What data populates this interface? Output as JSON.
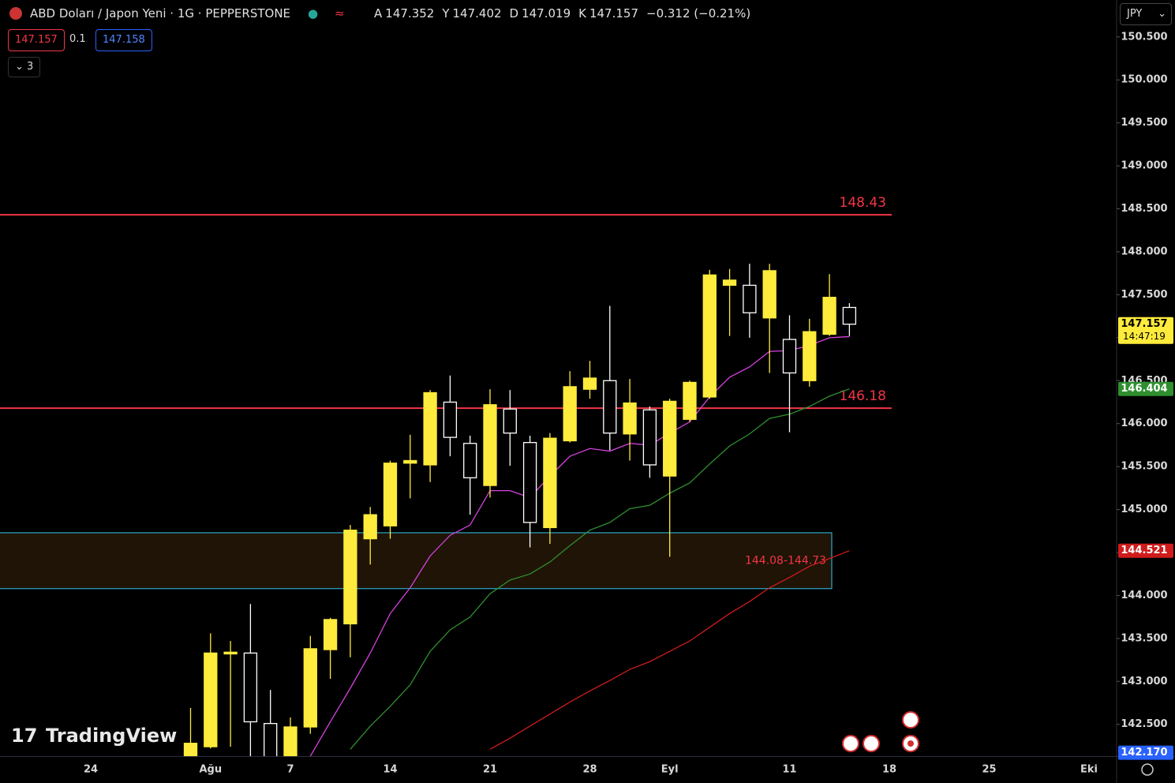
{
  "header": {
    "symbol": "ABD Doları / Japon Yeni · 1G · PEPPERSTONE",
    "ohlc_labels": [
      "A",
      "Y",
      "D",
      "K"
    ],
    "change": "−0.312 (−0.21%)",
    "sell_price": "147.157",
    "spread": "0.1",
    "buy_price": "147.158",
    "indicators_count": "3",
    "currency": "JPY",
    "logo": "TradingView"
  },
  "chart_data": {
    "type": "candlestick",
    "categories": [
      "24",
      null,
      null,
      null,
      null,
      null,
      "Ağu",
      null,
      null,
      null,
      "7",
      null,
      null,
      null,
      null,
      "14",
      null,
      null,
      null,
      null,
      "21",
      null,
      null,
      null,
      null,
      "28",
      null,
      null,
      null,
      "Eyl",
      null,
      null,
      null,
      null,
      null,
      "11",
      null,
      null,
      null,
      null,
      "18",
      null,
      null,
      null,
      null,
      "25",
      null,
      null,
      null,
      null,
      "Eki"
    ],
    "open": [
      null,
      null,
      null,
      null,
      null,
      142.13,
      142.24,
      143.32,
      143.33,
      142.51,
      142.05,
      142.47,
      143.37,
      143.67,
      144.66,
      144.81,
      145.54,
      145.52,
      146.25,
      145.77,
      145.28,
      146.17,
      145.78,
      144.79,
      145.8,
      146.4,
      146.5,
      145.88,
      146.16,
      145.39,
      146.05,
      146.31,
      147.61,
      147.61,
      147.23,
      146.98,
      146.5,
      147.04,
      147.352,
      null,
      null,
      null,
      null,
      null,
      null,
      null,
      null,
      null,
      null,
      null,
      null
    ],
    "high": [
      null,
      null,
      null,
      null,
      null,
      142.69,
      143.56,
      143.47,
      143.9,
      142.9,
      142.58,
      143.53,
      143.74,
      144.82,
      145.03,
      145.57,
      145.87,
      146.39,
      146.56,
      145.86,
      146.4,
      146.39,
      145.86,
      145.89,
      146.61,
      146.73,
      147.37,
      146.52,
      146.2,
      146.29,
      146.5,
      147.79,
      147.8,
      147.86,
      147.86,
      147.26,
      147.22,
      147.74,
      147.402,
      null,
      null,
      null,
      null,
      null,
      null,
      null,
      null,
      null,
      null,
      null,
      null
    ],
    "low": [
      null,
      null,
      null,
      null,
      null,
      141.95,
      142.22,
      142.24,
      141.95,
      141.9,
      141.95,
      142.39,
      143.03,
      143.28,
      144.36,
      144.66,
      145.13,
      145.32,
      145.62,
      144.94,
      145.14,
      145.51,
      144.56,
      144.6,
      145.78,
      146.29,
      145.69,
      145.57,
      145.37,
      144.45,
      146.02,
      146.29,
      147.02,
      147.0,
      146.59,
      145.9,
      146.43,
      147.02,
      147.019,
      null,
      null,
      null,
      null,
      null,
      null,
      null,
      null,
      null,
      null,
      null,
      null
    ],
    "close": [
      null,
      null,
      null,
      null,
      null,
      142.28,
      143.33,
      143.34,
      142.53,
      142.08,
      142.47,
      143.38,
      143.72,
      144.76,
      144.94,
      145.54,
      145.57,
      146.36,
      145.84,
      145.37,
      146.22,
      145.89,
      144.85,
      145.83,
      146.43,
      146.53,
      145.89,
      146.24,
      145.52,
      146.26,
      146.48,
      147.73,
      147.67,
      147.29,
      147.78,
      146.59,
      147.07,
      147.47,
      147.157,
      null,
      null,
      null,
      null,
      null,
      null,
      null,
      null,
      null,
      null,
      null,
      null
    ],
    "up_color": "#ffeb3b",
    "down_color": "#ffffff",
    "series": [
      {
        "color": "#d642e0",
        "values": [
          null,
          null,
          null,
          null,
          null,
          null,
          null,
          null,
          null,
          null,
          null,
          142.13,
          142.53,
          142.92,
          143.33,
          143.79,
          144.09,
          144.46,
          144.7,
          144.82,
          145.22,
          145.22,
          145.14,
          145.39,
          145.62,
          145.71,
          145.68,
          145.77,
          145.75,
          145.89,
          146.02,
          146.31,
          146.54,
          146.66,
          146.84,
          146.85,
          146.91,
          147.0,
          147.013,
          null,
          null,
          null,
          null,
          null,
          null,
          null,
          null,
          null,
          null,
          null,
          null
        ]
      },
      {
        "color": "#2f8f2f",
        "values": [
          null,
          null,
          null,
          null,
          null,
          null,
          null,
          null,
          null,
          null,
          null,
          null,
          null,
          142.21,
          142.48,
          142.71,
          142.96,
          143.35,
          143.6,
          143.75,
          144.02,
          144.18,
          144.25,
          144.39,
          144.58,
          144.76,
          144.85,
          145.01,
          145.05,
          145.19,
          145.31,
          145.53,
          145.74,
          145.88,
          146.06,
          146.11,
          146.2,
          146.32,
          146.404,
          null,
          null,
          null,
          null,
          null,
          null,
          null,
          null,
          null,
          null,
          null,
          null
        ]
      },
      {
        "color": "#d01c1c",
        "values": [
          null,
          null,
          null,
          null,
          null,
          null,
          null,
          null,
          null,
          null,
          null,
          null,
          null,
          null,
          null,
          null,
          null,
          null,
          null,
          null,
          142.21,
          142.34,
          142.48,
          142.62,
          142.76,
          142.89,
          143.01,
          143.14,
          143.23,
          143.35,
          143.47,
          143.63,
          143.79,
          143.93,
          144.09,
          144.21,
          144.34,
          144.43,
          144.521,
          null,
          null,
          null,
          null,
          null,
          null,
          null,
          null,
          null,
          null,
          null,
          null
        ]
      }
    ],
    "ylim": [
      142.13,
      150.93
    ],
    "yticks": [
      {
        "value": 142.5,
        "label": "142.500"
      },
      {
        "value": 143,
        "label": "143.000"
      },
      {
        "value": 143.5,
        "label": "143.500"
      },
      {
        "value": 144,
        "label": "144.000"
      },
      {
        "value": 144.5,
        "label": "144.500"
      },
      {
        "value": 145,
        "label": "145.000"
      },
      {
        "value": 145.5,
        "label": "145.500"
      },
      {
        "value": 146,
        "label": "146.000"
      },
      {
        "value": 146.5,
        "label": "146.500"
      },
      {
        "value": 147,
        "label": "147.000"
      },
      {
        "value": 147.5,
        "label": "147.500"
      },
      {
        "value": 148,
        "label": "148.000"
      },
      {
        "value": 148.5,
        "label": "148.500"
      },
      {
        "value": 149,
        "label": "149.000"
      },
      {
        "value": 149.5,
        "label": "149.500"
      },
      {
        "value": 150,
        "label": "150.000"
      },
      {
        "value": 150.5,
        "label": "150.500"
      }
    ],
    "levels": [
      148.43,
      146.18
    ],
    "level_color": "#f23645",
    "zone": {
      "low": 144.08,
      "high": 144.73,
      "label": "144.08-144.73"
    },
    "countdown": "14:47:19",
    "marker_price": {
      "value": 142.17,
      "label": "142.170"
    }
  }
}
